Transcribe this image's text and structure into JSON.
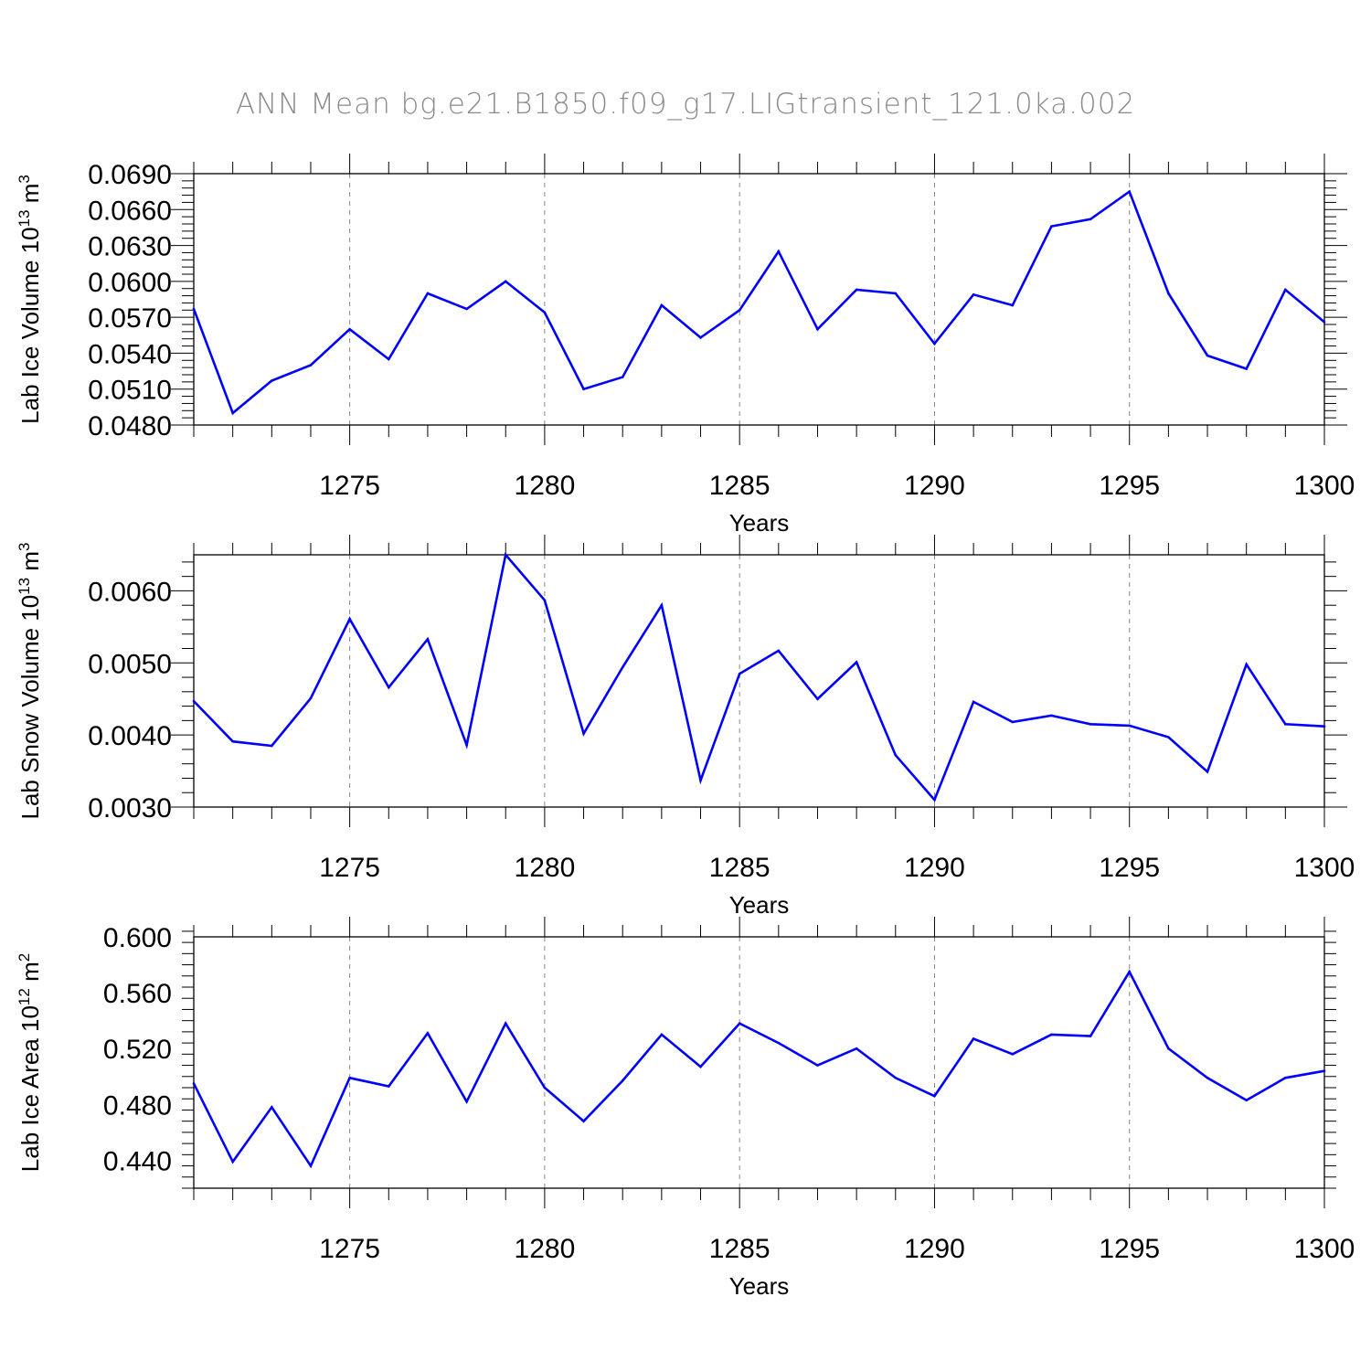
{
  "title": "ANN Mean bg.e21.B1850.f09_g17.LIGtransient_121.0ka.002",
  "colors": {
    "series": "#0000ff",
    "axis": "#000000",
    "grid": "#888888",
    "title": "#8a8a8a"
  },
  "chart_data": [
    {
      "type": "line",
      "ylabel_main": "Lab Ice Volume 10",
      "ylabel_exp": "13",
      "ylabel_unit": " m",
      "ylabel_unit_exp": "3",
      "xlabel": "Years",
      "xlim": [
        1271,
        1300
      ],
      "ylim": [
        0.048,
        0.069
      ],
      "xticks": [
        "1275",
        "1280",
        "1285",
        "1290",
        "1295",
        "1300"
      ],
      "yticks": [
        "0.0480",
        "0.0510",
        "0.0540",
        "0.0570",
        "0.0600",
        "0.0630",
        "0.0660",
        "0.0690"
      ],
      "grid": "vertical dashed at x major ticks",
      "x": [
        1271,
        1272,
        1273,
        1274,
        1275,
        1276,
        1277,
        1278,
        1279,
        1280,
        1281,
        1282,
        1283,
        1284,
        1285,
        1286,
        1287,
        1288,
        1289,
        1290,
        1291,
        1292,
        1293,
        1294,
        1295,
        1296,
        1297,
        1298,
        1299,
        1300
      ],
      "values": [
        0.0577,
        0.049,
        0.0517,
        0.053,
        0.056,
        0.0535,
        0.059,
        0.0577,
        0.06,
        0.0574,
        0.051,
        0.052,
        0.058,
        0.0553,
        0.0576,
        0.0625,
        0.056,
        0.0593,
        0.059,
        0.0548,
        0.0589,
        0.058,
        0.0646,
        0.0652,
        0.0675,
        0.059,
        0.0538,
        0.0527,
        0.0593,
        0.0566
      ]
    },
    {
      "type": "line",
      "ylabel_main": "Lab Snow Volume 10",
      "ylabel_exp": "13",
      "ylabel_unit": " m",
      "ylabel_unit_exp": "3",
      "xlabel": "Years",
      "xlim": [
        1271,
        1300
      ],
      "ylim": [
        0.003,
        0.0065
      ],
      "xticks": [
        "1275",
        "1280",
        "1285",
        "1290",
        "1295",
        "1300"
      ],
      "yticks": [
        "0.0030",
        "0.0040",
        "0.0050",
        "0.0060"
      ],
      "grid": "vertical dashed at x major ticks",
      "x": [
        1271,
        1272,
        1273,
        1274,
        1275,
        1276,
        1277,
        1278,
        1279,
        1280,
        1281,
        1282,
        1283,
        1284,
        1285,
        1286,
        1287,
        1288,
        1289,
        1290,
        1291,
        1292,
        1293,
        1294,
        1295,
        1296,
        1297,
        1298,
        1299,
        1300
      ],
      "values": [
        0.00447,
        0.00391,
        0.00385,
        0.00451,
        0.00561,
        0.00466,
        0.00533,
        0.00386,
        0.0065,
        0.00587,
        0.00402,
        0.00494,
        0.0058,
        0.00337,
        0.00485,
        0.00517,
        0.0045,
        0.00501,
        0.00372,
        0.0031,
        0.00446,
        0.00418,
        0.00427,
        0.00415,
        0.00413,
        0.00397,
        0.00349,
        0.00498,
        0.00415,
        0.00412
      ]
    },
    {
      "type": "line",
      "ylabel_main": "Lab Ice Area 10",
      "ylabel_exp": "12",
      "ylabel_unit": " m",
      "ylabel_unit_exp": "2",
      "xlabel": "Years",
      "xlim": [
        1271,
        1300
      ],
      "ylim": [
        0.42,
        0.6
      ],
      "xticks": [
        "1275",
        "1280",
        "1285",
        "1290",
        "1295",
        "1300"
      ],
      "yticks": [
        "0.440",
        "0.480",
        "0.520",
        "0.560",
        "0.600"
      ],
      "grid": "vertical dashed at x major ticks",
      "x": [
        1271,
        1272,
        1273,
        1274,
        1275,
        1276,
        1277,
        1278,
        1279,
        1280,
        1281,
        1282,
        1283,
        1284,
        1285,
        1286,
        1287,
        1288,
        1289,
        1290,
        1291,
        1292,
        1293,
        1294,
        1295,
        1296,
        1297,
        1298,
        1299,
        1300
      ],
      "values": [
        0.495,
        0.439,
        0.478,
        0.436,
        0.499,
        0.493,
        0.531,
        0.482,
        0.538,
        0.492,
        0.468,
        0.497,
        0.53,
        0.507,
        0.538,
        0.524,
        0.508,
        0.52,
        0.499,
        0.486,
        0.527,
        0.516,
        0.53,
        0.529,
        0.575,
        0.52,
        0.499,
        0.483,
        0.499,
        0.504
      ]
    }
  ]
}
